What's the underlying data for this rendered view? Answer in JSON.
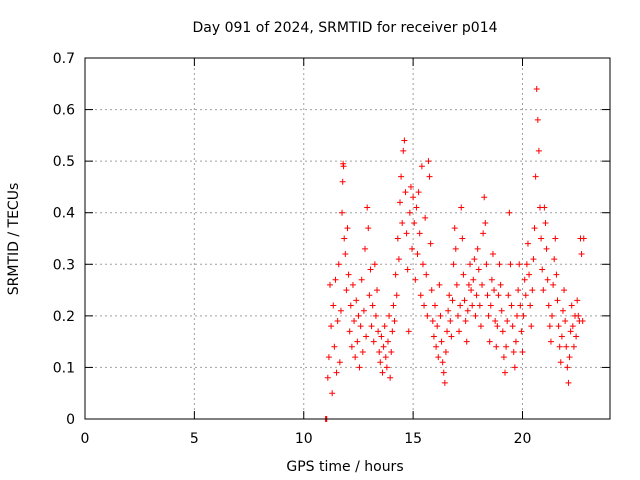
{
  "chart_data": {
    "type": "scatter",
    "title": "Day 091 of 2024, SRMTID for receiver p014",
    "xlabel": "GPS time / hours",
    "ylabel": "SRMTID / TECUs",
    "xlim": [
      0,
      24
    ],
    "ylim": [
      0,
      0.7
    ],
    "xticks": [
      0,
      5,
      10,
      15,
      20
    ],
    "xtick_labels": [
      "0",
      "5",
      "10",
      "15",
      "20"
    ],
    "yticks": [
      0,
      0.1,
      0.2,
      0.3,
      0.4,
      0.5,
      0.6,
      0.7
    ],
    "ytick_labels": [
      "0",
      "0.1",
      "0.2",
      "0.3",
      "0.4",
      "0.5",
      "0.6",
      "0.7"
    ],
    "grid": true,
    "marker": "+",
    "series": [
      {
        "name": "p014",
        "color": "#ff0000",
        "points": [
          [
            11.0,
            0.0
          ],
          [
            11.02,
            0.0
          ],
          [
            11.05,
            0.0
          ],
          [
            11.1,
            0.08
          ],
          [
            11.15,
            0.12
          ],
          [
            11.2,
            0.26
          ],
          [
            11.25,
            0.18
          ],
          [
            11.3,
            0.05
          ],
          [
            11.35,
            0.22
          ],
          [
            11.4,
            0.14
          ],
          [
            11.45,
            0.27
          ],
          [
            11.5,
            0.09
          ],
          [
            11.55,
            0.19
          ],
          [
            11.6,
            0.3
          ],
          [
            11.65,
            0.11
          ],
          [
            11.7,
            0.21
          ],
          [
            11.75,
            0.4
          ],
          [
            11.78,
            0.46
          ],
          [
            11.8,
            0.495
          ],
          [
            11.82,
            0.49
          ],
          [
            11.85,
            0.35
          ],
          [
            11.9,
            0.32
          ],
          [
            11.95,
            0.25
          ],
          [
            12.0,
            0.37
          ],
          [
            12.05,
            0.28
          ],
          [
            12.1,
            0.17
          ],
          [
            12.15,
            0.22
          ],
          [
            12.2,
            0.14
          ],
          [
            12.25,
            0.26
          ],
          [
            12.3,
            0.19
          ],
          [
            12.35,
            0.12
          ],
          [
            12.4,
            0.23
          ],
          [
            12.45,
            0.15
          ],
          [
            12.5,
            0.2
          ],
          [
            12.55,
            0.1
          ],
          [
            12.6,
            0.18
          ],
          [
            12.65,
            0.27
          ],
          [
            12.7,
            0.13
          ],
          [
            12.75,
            0.21
          ],
          [
            12.8,
            0.33
          ],
          [
            12.85,
            0.16
          ],
          [
            12.9,
            0.41
          ],
          [
            12.95,
            0.37
          ],
          [
            13.0,
            0.24
          ],
          [
            13.05,
            0.29
          ],
          [
            13.1,
            0.18
          ],
          [
            13.15,
            0.22
          ],
          [
            13.2,
            0.15
          ],
          [
            13.25,
            0.3
          ],
          [
            13.3,
            0.2
          ],
          [
            13.35,
            0.25
          ],
          [
            13.4,
            0.17
          ],
          [
            13.45,
            0.13
          ],
          [
            13.5,
            0.11
          ],
          [
            13.55,
            0.16
          ],
          [
            13.6,
            0.09
          ],
          [
            13.65,
            0.14
          ],
          [
            13.7,
            0.18
          ],
          [
            13.75,
            0.12
          ],
          [
            13.8,
            0.1
          ],
          [
            13.85,
            0.15
          ],
          [
            13.9,
            0.2
          ],
          [
            13.95,
            0.08
          ],
          [
            14.0,
            0.13
          ],
          [
            14.05,
            0.17
          ],
          [
            14.1,
            0.22
          ],
          [
            14.15,
            0.19
          ],
          [
            14.2,
            0.28
          ],
          [
            14.25,
            0.24
          ],
          [
            14.3,
            0.35
          ],
          [
            14.35,
            0.31
          ],
          [
            14.4,
            0.42
          ],
          [
            14.45,
            0.47
          ],
          [
            14.5,
            0.38
          ],
          [
            14.55,
            0.52
          ],
          [
            14.6,
            0.54
          ],
          [
            14.65,
            0.44
          ],
          [
            14.7,
            0.36
          ],
          [
            14.75,
            0.29
          ],
          [
            14.8,
            0.17
          ],
          [
            14.85,
            0.4
          ],
          [
            14.9,
            0.45
          ],
          [
            14.95,
            0.33
          ],
          [
            15.0,
            0.43
          ],
          [
            15.05,
            0.38
          ],
          [
            15.1,
            0.27
          ],
          [
            15.15,
            0.41
          ],
          [
            15.2,
            0.32
          ],
          [
            15.25,
            0.44
          ],
          [
            15.3,
            0.36
          ],
          [
            15.35,
            0.24
          ],
          [
            15.4,
            0.49
          ],
          [
            15.45,
            0.3
          ],
          [
            15.5,
            0.22
          ],
          [
            15.55,
            0.39
          ],
          [
            15.6,
            0.28
          ],
          [
            15.65,
            0.2
          ],
          [
            15.7,
            0.5
          ],
          [
            15.75,
            0.47
          ],
          [
            15.8,
            0.34
          ],
          [
            15.85,
            0.25
          ],
          [
            15.9,
            0.19
          ],
          [
            15.95,
            0.16
          ],
          [
            16.0,
            0.22
          ],
          [
            16.05,
            0.14
          ],
          [
            16.1,
            0.18
          ],
          [
            16.15,
            0.12
          ],
          [
            16.2,
            0.26
          ],
          [
            16.25,
            0.2
          ],
          [
            16.3,
            0.15
          ],
          [
            16.35,
            0.11
          ],
          [
            16.4,
            0.09
          ],
          [
            16.45,
            0.07
          ],
          [
            16.5,
            0.13
          ],
          [
            16.55,
            0.17
          ],
          [
            16.6,
            0.21
          ],
          [
            16.65,
            0.24
          ],
          [
            16.7,
            0.19
          ],
          [
            16.75,
            0.16
          ],
          [
            16.8,
            0.23
          ],
          [
            16.85,
            0.3
          ],
          [
            16.9,
            0.37
          ],
          [
            16.95,
            0.33
          ],
          [
            17.0,
            0.26
          ],
          [
            17.05,
            0.2
          ],
          [
            17.1,
            0.17
          ],
          [
            17.15,
            0.22
          ],
          [
            17.2,
            0.41
          ],
          [
            17.25,
            0.35
          ],
          [
            17.3,
            0.28
          ],
          [
            17.35,
            0.23
          ],
          [
            17.4,
            0.19
          ],
          [
            17.45,
            0.15
          ],
          [
            17.5,
            0.21
          ],
          [
            17.55,
            0.26
          ],
          [
            17.6,
            0.3
          ],
          [
            17.65,
            0.25
          ],
          [
            17.7,
            0.22
          ],
          [
            17.75,
            0.27
          ],
          [
            17.8,
            0.31
          ],
          [
            17.85,
            0.2
          ],
          [
            17.9,
            0.24
          ],
          [
            17.95,
            0.33
          ],
          [
            18.0,
            0.29
          ],
          [
            18.05,
            0.22
          ],
          [
            18.1,
            0.18
          ],
          [
            18.15,
            0.26
          ],
          [
            18.2,
            0.36
          ],
          [
            18.25,
            0.43
          ],
          [
            18.3,
            0.38
          ],
          [
            18.35,
            0.3
          ],
          [
            18.4,
            0.24
          ],
          [
            18.45,
            0.2
          ],
          [
            18.5,
            0.15
          ],
          [
            18.55,
            0.22
          ],
          [
            18.6,
            0.27
          ],
          [
            18.65,
            0.32
          ],
          [
            18.7,
            0.25
          ],
          [
            18.75,
            0.19
          ],
          [
            18.8,
            0.14
          ],
          [
            18.85,
            0.18
          ],
          [
            18.9,
            0.24
          ],
          [
            18.95,
            0.3
          ],
          [
            19.0,
            0.26
          ],
          [
            19.05,
            0.21
          ],
          [
            19.1,
            0.17
          ],
          [
            19.15,
            0.12
          ],
          [
            19.2,
            0.09
          ],
          [
            19.25,
            0.14
          ],
          [
            19.3,
            0.19
          ],
          [
            19.35,
            0.24
          ],
          [
            19.4,
            0.4
          ],
          [
            19.45,
            0.3
          ],
          [
            19.5,
            0.22
          ],
          [
            19.55,
            0.18
          ],
          [
            19.6,
            0.13
          ],
          [
            19.65,
            0.1
          ],
          [
            19.7,
            0.15
          ],
          [
            19.75,
            0.2
          ],
          [
            19.8,
            0.25
          ],
          [
            19.85,
            0.3
          ],
          [
            19.9,
            0.22
          ],
          [
            19.95,
            0.17
          ],
          [
            20.0,
            0.13
          ],
          [
            20.05,
            0.2
          ],
          [
            20.1,
            0.27
          ],
          [
            20.15,
            0.24
          ],
          [
            20.2,
            0.3
          ],
          [
            20.25,
            0.34
          ],
          [
            20.3,
            0.28
          ],
          [
            20.35,
            0.22
          ],
          [
            20.4,
            0.18
          ],
          [
            20.45,
            0.25
          ],
          [
            20.5,
            0.31
          ],
          [
            20.55,
            0.37
          ],
          [
            20.6,
            0.47
          ],
          [
            20.65,
            0.64
          ],
          [
            20.7,
            0.58
          ],
          [
            20.75,
            0.52
          ],
          [
            20.8,
            0.41
          ],
          [
            20.85,
            0.35
          ],
          [
            20.9,
            0.29
          ],
          [
            20.95,
            0.25
          ],
          [
            21.0,
            0.41
          ],
          [
            21.05,
            0.38
          ],
          [
            21.1,
            0.33
          ],
          [
            21.15,
            0.27
          ],
          [
            21.2,
            0.22
          ],
          [
            21.25,
            0.18
          ],
          [
            21.3,
            0.15
          ],
          [
            21.35,
            0.2
          ],
          [
            21.4,
            0.26
          ],
          [
            21.45,
            0.31
          ],
          [
            21.5,
            0.35
          ],
          [
            21.55,
            0.28
          ],
          [
            21.6,
            0.23
          ],
          [
            21.65,
            0.18
          ],
          [
            21.7,
            0.14
          ],
          [
            21.75,
            0.11
          ],
          [
            21.8,
            0.16
          ],
          [
            21.85,
            0.21
          ],
          [
            21.9,
            0.25
          ],
          [
            21.95,
            0.19
          ],
          [
            22.0,
            0.14
          ],
          [
            22.05,
            0.1
          ],
          [
            22.1,
            0.07
          ],
          [
            22.15,
            0.12
          ],
          [
            22.2,
            0.17
          ],
          [
            22.25,
            0.22
          ],
          [
            22.3,
            0.18
          ],
          [
            22.35,
            0.14
          ],
          [
            22.4,
            0.2
          ],
          [
            22.45,
            0.16
          ],
          [
            22.5,
            0.23
          ],
          [
            22.55,
            0.2
          ],
          [
            22.6,
            0.19
          ],
          [
            22.65,
            0.35
          ],
          [
            22.7,
            0.32
          ],
          [
            22.75,
            0.19
          ],
          [
            22.8,
            0.35
          ]
        ]
      }
    ]
  }
}
